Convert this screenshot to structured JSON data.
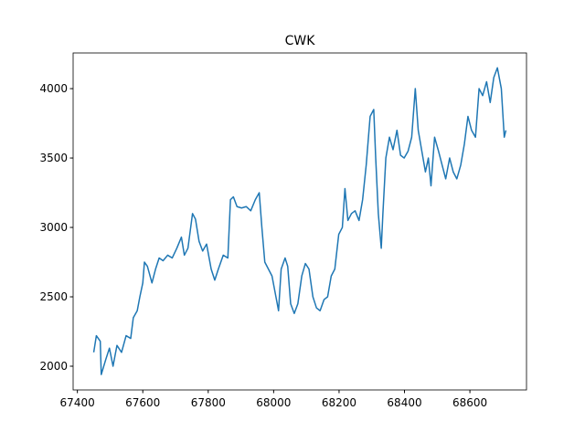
{
  "chart_data": {
    "type": "line",
    "title": "CWK",
    "x": [
      67450,
      67458,
      67470,
      67473,
      67487,
      67498,
      67509,
      67521,
      67535,
      67549,
      67563,
      67571,
      67583,
      67591,
      67600,
      67605,
      67614,
      67628,
      67639,
      67650,
      67662,
      67676,
      67690,
      67704,
      67718,
      67727,
      67738,
      67752,
      67761,
      67772,
      67783,
      67795,
      67809,
      67820,
      67831,
      67846,
      67860,
      67868,
      67877,
      67888,
      67902,
      67916,
      67930,
      67944,
      67956,
      67964,
      67973,
      67984,
      67995,
      68007,
      68015,
      68023,
      68035,
      68043,
      68052,
      68063,
      68074,
      68086,
      68097,
      68108,
      68120,
      68131,
      68142,
      68154,
      68165,
      68176,
      68187,
      68199,
      68210,
      68218,
      68227,
      68238,
      68249,
      68261,
      68272,
      68283,
      68295,
      68306,
      68312,
      68320,
      68329,
      68334,
      68343,
      68354,
      68365,
      68377,
      68388,
      68399,
      68411,
      68422,
      68433,
      68442,
      68453,
      68464,
      68473,
      68481,
      68492,
      68504,
      68515,
      68526,
      68538,
      68549,
      68560,
      68572,
      68583,
      68594,
      68605,
      68617,
      68628,
      68639,
      68651,
      68662,
      68673,
      68684,
      68696,
      68705,
      68710
    ],
    "series": [
      {
        "name": "CWK",
        "color": "#1f77b4",
        "values": [
          2100,
          2220,
          2180,
          1940,
          2050,
          2130,
          2000,
          2150,
          2100,
          2220,
          2200,
          2350,
          2400,
          2500,
          2600,
          2750,
          2720,
          2600,
          2700,
          2780,
          2760,
          2800,
          2780,
          2850,
          2930,
          2800,
          2850,
          3100,
          3060,
          2900,
          2830,
          2880,
          2700,
          2620,
          2700,
          2800,
          2780,
          3200,
          3220,
          3150,
          3140,
          3150,
          3120,
          3200,
          3250,
          3000,
          2750,
          2700,
          2650,
          2500,
          2400,
          2700,
          2780,
          2720,
          2450,
          2380,
          2450,
          2650,
          2740,
          2700,
          2500,
          2420,
          2400,
          2480,
          2500,
          2650,
          2700,
          2950,
          3000,
          3280,
          3050,
          3100,
          3120,
          3050,
          3200,
          3450,
          3800,
          3850,
          3500,
          3100,
          2850,
          3100,
          3500,
          3650,
          3560,
          3700,
          3520,
          3500,
          3550,
          3650,
          4000,
          3700,
          3550,
          3400,
          3500,
          3300,
          3650,
          3550,
          3450,
          3350,
          3500,
          3400,
          3350,
          3450,
          3600,
          3800,
          3700,
          3650,
          4000,
          3950,
          4050,
          3900,
          4080,
          4150,
          4000,
          3650,
          3700
        ]
      }
    ],
    "xlim": [
      67387,
      68773
    ],
    "xticks": [
      67400,
      67600,
      67800,
      68000,
      68200,
      68400,
      68600
    ],
    "ylim": [
      1829,
      4257
    ],
    "yticks": [
      2000,
      2500,
      3000,
      3500,
      4000
    ]
  }
}
